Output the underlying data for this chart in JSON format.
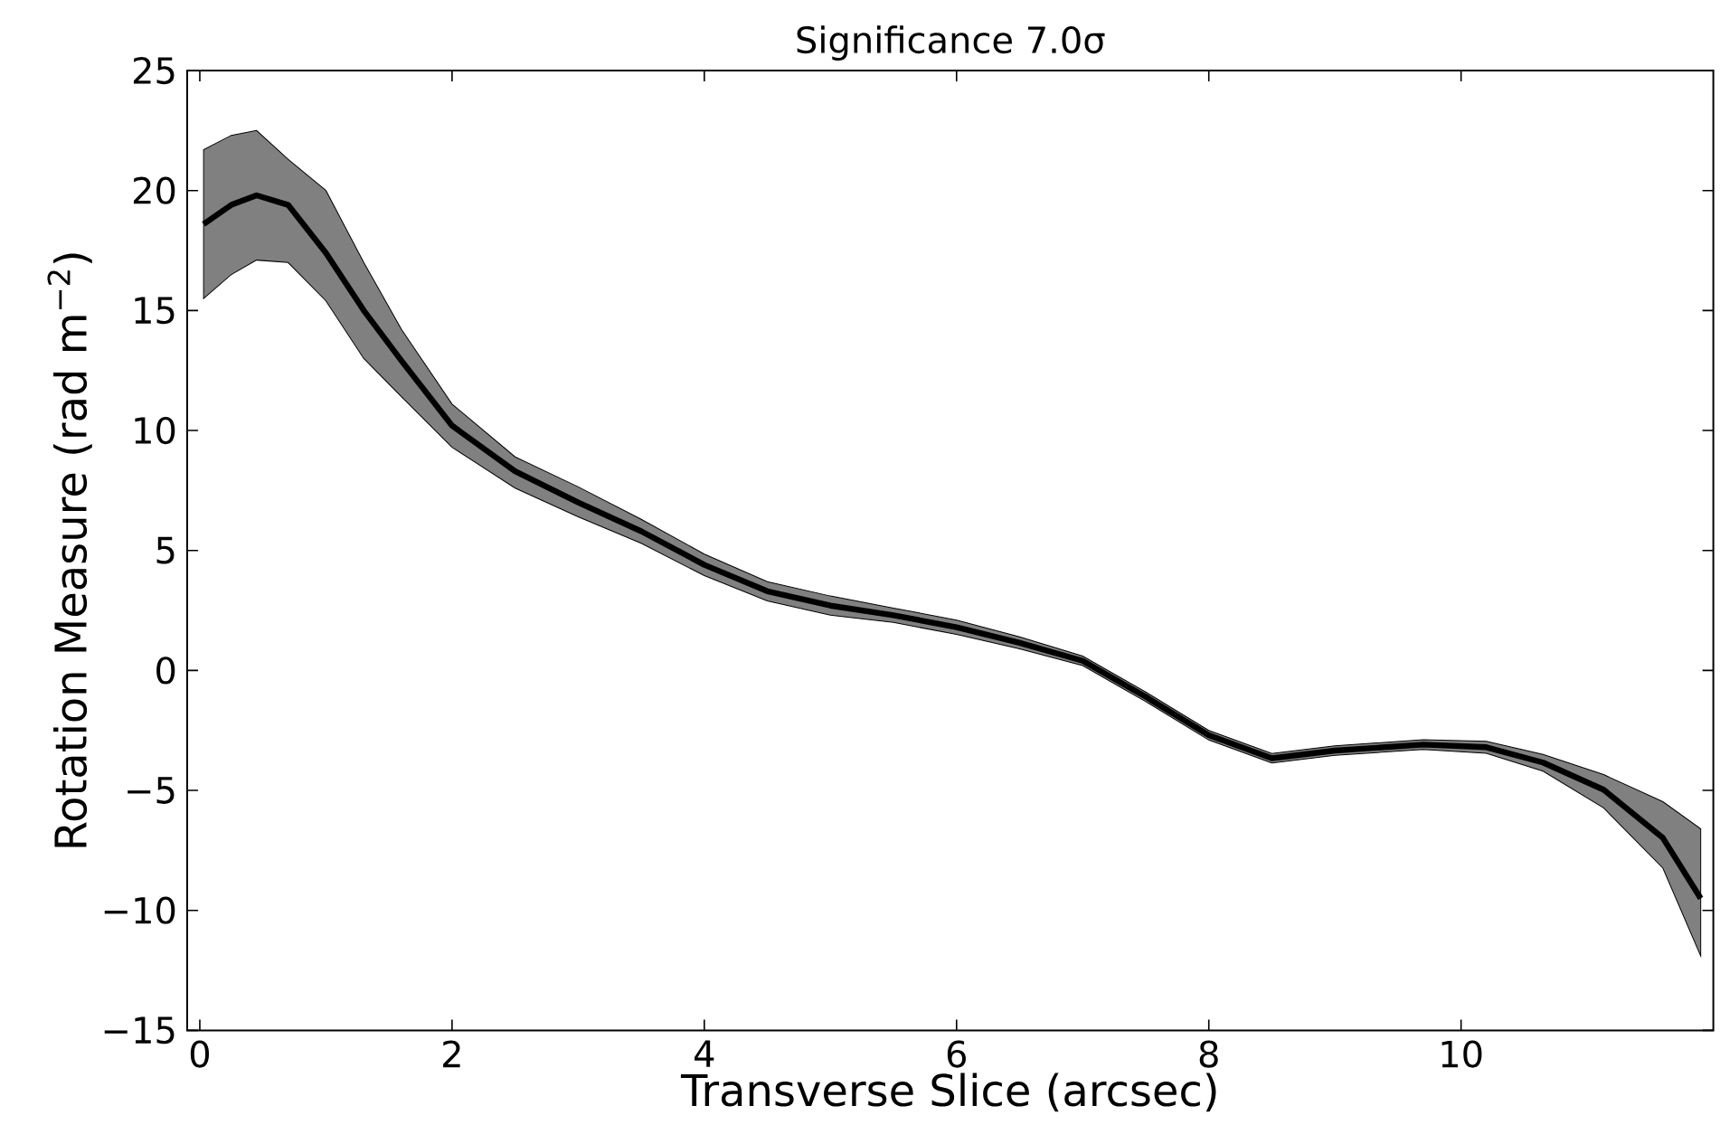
{
  "chart_data": {
    "type": "line",
    "title": "Significance  7.0σ",
    "xlabel": "Transverse Slice (arcsec)",
    "ylabel": "Rotation Measure (rad m$^{−2}$)",
    "xlim": [
      -0.1,
      12.0
    ],
    "ylim": [
      -15,
      25
    ],
    "xticks": [
      0,
      2,
      4,
      6,
      8,
      10
    ],
    "yticks": [
      {
        "value": -15,
        "label": "−15"
      },
      {
        "value": -10,
        "label": "−10"
      },
      {
        "value": -5,
        "label": "−5"
      },
      0,
      5,
      10,
      15,
      20,
      25
    ],
    "grid": false,
    "marker": "none",
    "line_style": "solid",
    "series": [
      {
        "color": "#000000",
        "x": [
          0.03,
          0.25,
          0.45,
          0.7,
          1.0,
          1.3,
          1.6,
          2.0,
          2.5,
          3.0,
          3.5,
          4.0,
          4.5,
          5.0,
          5.5,
          6.0,
          6.5,
          7.0,
          7.5,
          8.0,
          8.5,
          9.0,
          9.7,
          10.2,
          10.65,
          11.13,
          11.6,
          11.9
        ],
        "values": [
          18.6,
          19.4,
          19.8,
          19.4,
          17.4,
          15.0,
          12.9,
          10.2,
          8.3,
          7.0,
          5.8,
          4.4,
          3.3,
          2.7,
          2.3,
          1.8,
          1.15,
          0.4,
          -1.1,
          -2.7,
          -3.66,
          -3.34,
          -3.09,
          -3.2,
          -3.84,
          -4.97,
          -6.98,
          -9.5
        ],
        "lower": [
          15.5,
          16.5,
          17.1,
          17.0,
          15.4,
          13.0,
          11.4,
          9.3,
          7.6,
          6.4,
          5.3,
          3.95,
          2.9,
          2.3,
          2.0,
          1.5,
          0.9,
          0.2,
          -1.3,
          -2.9,
          -3.86,
          -3.54,
          -3.29,
          -3.45,
          -4.2,
          -5.73,
          -8.24,
          -11.9
        ],
        "upper": [
          21.7,
          22.3,
          22.5,
          21.3,
          20.0,
          17.0,
          14.2,
          11.1,
          8.9,
          7.65,
          6.3,
          4.85,
          3.7,
          3.1,
          2.6,
          2.1,
          1.4,
          0.6,
          -0.9,
          -2.5,
          -3.46,
          -3.14,
          -2.89,
          -2.95,
          -3.5,
          -4.34,
          -5.47,
          -6.6
        ]
      }
    ]
  }
}
